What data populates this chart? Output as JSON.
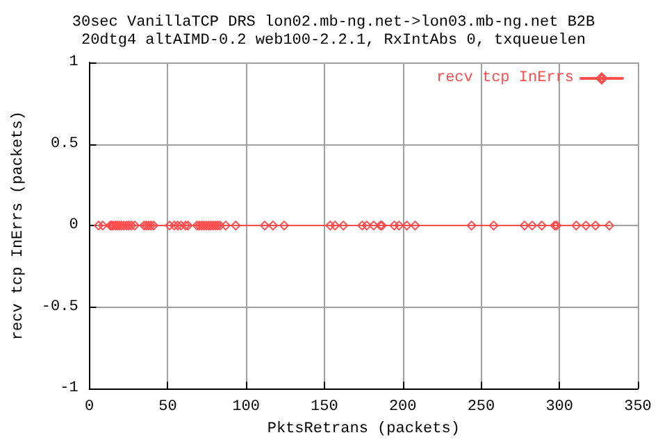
{
  "chart_data": {
    "type": "line",
    "title": "30sec VanillaTCP DRS lon02.mb-ng.net->lon03.mb-ng.net B2B",
    "subtitle": "20dtg4 altAIMD-0.2 web100-2.2.1, RxIntAbs 0, txqueuelen",
    "xlabel": "PktsRetrans (packets)",
    "ylabel": "recv tcp InErrs (packets)",
    "xlim": [
      0,
      350
    ],
    "xticks": [
      0,
      50,
      100,
      150,
      200,
      250,
      300,
      350
    ],
    "ylim": [
      -1,
      1
    ],
    "yticks": [
      -1,
      -0.5,
      0,
      0.5,
      1
    ],
    "grid": true,
    "legend": "top right",
    "marker": "diamond",
    "line_style": "solid",
    "series": [
      {
        "name": "recv tcp InErrs",
        "color": "#ff4d4d",
        "x": [
          5.9,
          8.5,
          13.4,
          14.3,
          15.2,
          16.7,
          17.8,
          19.1,
          20.5,
          22,
          23.7,
          25.2,
          26.9,
          29,
          34.9,
          36.3,
          37.8,
          39.3,
          41,
          51.2,
          54.2,
          56.4,
          58.5,
          61.4,
          62.9,
          68.7,
          70.2,
          71.7,
          73.1,
          74.6,
          76.1,
          77.5,
          79,
          80.5,
          81.9,
          83.4,
          87,
          93.4,
          111.9,
          117.2,
          124.3,
          153.7,
          156.8,
          162.1,
          174.1,
          177,
          181.4,
          185.8,
          186.7,
          194.6,
          197.6,
          202.6,
          207.9,
          243.9,
          258,
          277.7,
          282.6,
          288.7,
          297,
          298.2,
          310.7,
          316.9,
          323,
          331.8
        ],
        "values": [
          0,
          0,
          0,
          0,
          0,
          0,
          0,
          0,
          0,
          0,
          0,
          0,
          0,
          0,
          0,
          0,
          0,
          0,
          0,
          0,
          0,
          0,
          0,
          0,
          0,
          0,
          0,
          0,
          0,
          0,
          0,
          0,
          0,
          0,
          0,
          0,
          0,
          0,
          0,
          0,
          0,
          0,
          0,
          0,
          0,
          0,
          0,
          0,
          0,
          0,
          0,
          0,
          0,
          0,
          0,
          0,
          0,
          0,
          0,
          0,
          0,
          0,
          0,
          0
        ]
      }
    ]
  }
}
